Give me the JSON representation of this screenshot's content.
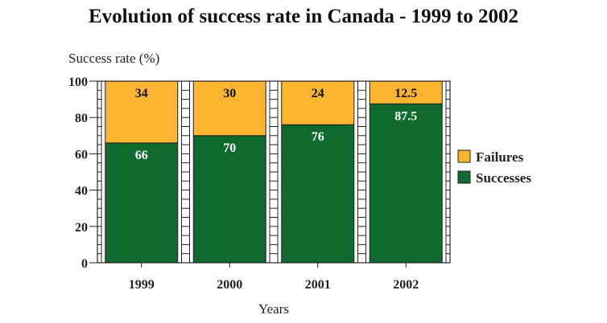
{
  "chart_data": {
    "type": "bar",
    "stacked": true,
    "title": "Evolution of success rate in Canada - 1999 to 2002",
    "ylabel": "Success rate (%)",
    "xlabel": "Years",
    "categories": [
      "1999",
      "2000",
      "2001",
      "2002"
    ],
    "ylim": [
      0,
      100
    ],
    "yticks": [
      0,
      20,
      40,
      60,
      80,
      100
    ],
    "yticks_text": [
      "0",
      "20",
      "40",
      "60",
      "80",
      "100"
    ],
    "legend_position": "right",
    "series": [
      {
        "name": "Successes",
        "color": "#0f6a2e",
        "label_color": "#ffffff",
        "values": [
          66,
          70,
          76,
          87.5
        ],
        "labels": [
          "66",
          "70",
          "76",
          "87.5"
        ]
      },
      {
        "name": "Failures",
        "color": "#fbb530",
        "label_color": "#111111",
        "values": [
          34,
          30,
          24,
          12.5
        ],
        "labels": [
          "34",
          "30",
          "24",
          "12.5"
        ]
      }
    ],
    "legend_order": [
      1,
      0
    ]
  }
}
